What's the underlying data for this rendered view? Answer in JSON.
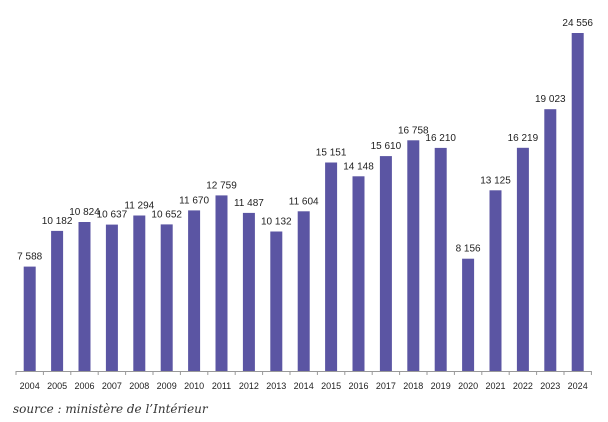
{
  "chart_data": {
    "type": "bar",
    "categories": [
      "2004",
      "2005",
      "2006",
      "2007",
      "2008",
      "2009",
      "2010",
      "2011",
      "2012",
      "2013",
      "2014",
      "2015",
      "2016",
      "2017",
      "2018",
      "2019",
      "2020",
      "2021",
      "2022",
      "2023",
      "2024"
    ],
    "values": [
      7588,
      10182,
      10824,
      10637,
      11294,
      10652,
      11670,
      12759,
      11487,
      10132,
      11604,
      15151,
      14148,
      15610,
      16758,
      16210,
      8156,
      13125,
      16219,
      19023,
      24556
    ],
    "value_labels": [
      "7 588",
      "10 182",
      "10 824",
      "10 637",
      "11 294",
      "10 652",
      "11 670",
      "12 759",
      "11 487",
      "10 132",
      "11 604",
      "15 151",
      "14 148",
      "15 610",
      "16 758",
      "16 210",
      "8 156",
      "13 125",
      "16 219",
      "19 023",
      "24 556"
    ],
    "title": "",
    "xlabel": "",
    "ylabel": "",
    "ylim": [
      0,
      24556
    ],
    "grid": false,
    "legend": "none",
    "colors": {
      "bar": "#5b55a3",
      "axis": "#999999",
      "text": "#222222"
    }
  },
  "source": "source : ministère de l’Intérieur"
}
